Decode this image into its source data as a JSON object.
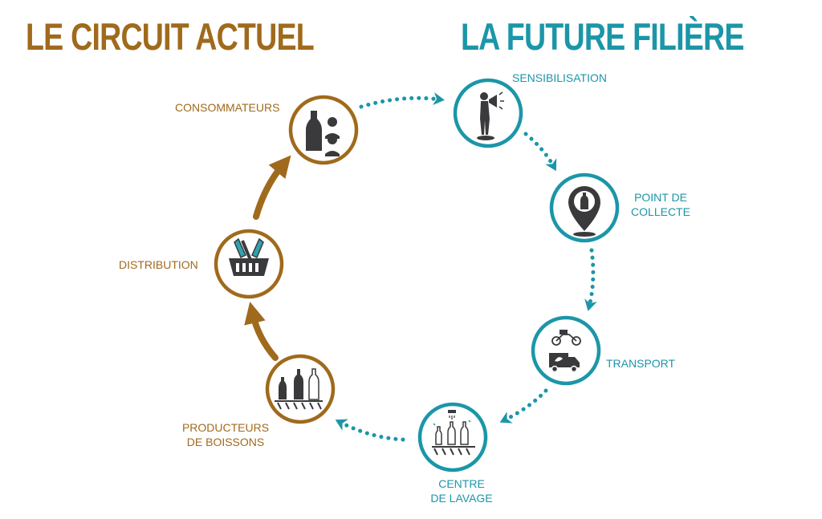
{
  "titles": {
    "current": "LE CIRCUIT ACTUEL",
    "future": "LA FUTURE FILIÈRE"
  },
  "colors": {
    "brown": "#a06a1c",
    "teal": "#1b96a8",
    "icon_dark": "#3a3a3c"
  },
  "current_circuit": {
    "consommateurs": "CONSOMMATEURS",
    "distribution": "DISTRIBUTION",
    "producteurs_line1": "PRODUCTEURS",
    "producteurs_line2": "DE BOISSONS"
  },
  "future_chain": {
    "sensibilisation": "SENSIBILISATION",
    "point_line1": "POINT DE",
    "point_line2": "COLLECTE",
    "transport": "TRANSPORT",
    "centre_line1": "CENTRE",
    "centre_line2": "DE LAVAGE"
  },
  "icons": {
    "consommateurs": "bottle-and-people-icon",
    "distribution": "basket-icon",
    "producteurs": "bottles-on-conveyor-icon",
    "sensibilisation": "megaphone-person-icon",
    "point_de_collecte": "location-pin-icon",
    "transport": "bike-and-truck-icon",
    "centre_de_lavage": "bottle-washing-icon"
  }
}
